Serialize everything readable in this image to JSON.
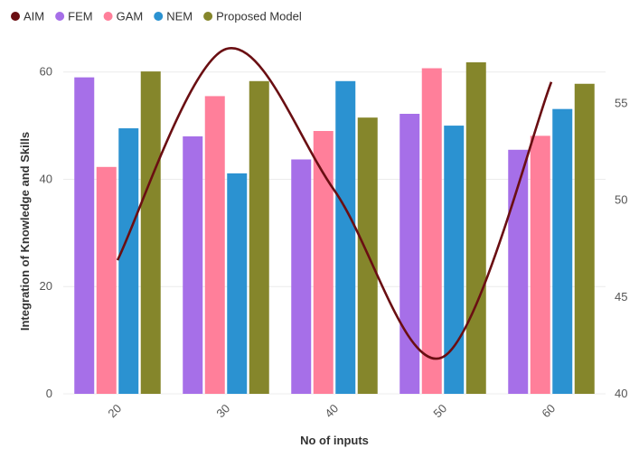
{
  "chart_data": {
    "type": "bar",
    "xlabel": "No of inputs",
    "ylabel": "Integration of Knowledge and Skills",
    "y2label": "",
    "categories": [
      "20",
      "30",
      "40",
      "50",
      "60"
    ],
    "ylim": [
      0,
      65
    ],
    "y2lim": [
      40,
      58
    ],
    "yticks": [
      "0",
      "20",
      "40",
      "60"
    ],
    "y2ticks": [
      "40",
      "45",
      "50",
      "55"
    ],
    "grid": "horizontal",
    "legend_position": "top-left",
    "series": [
      {
        "name": "FEM",
        "type": "bar",
        "axis": "left",
        "color": "#a66fe8",
        "values": [
          59,
          48,
          43.7,
          52.2,
          45.5
        ]
      },
      {
        "name": "GAM",
        "type": "bar",
        "axis": "left",
        "color": "#ff7f9a",
        "values": [
          42.3,
          55.5,
          49,
          60.7,
          48.1
        ]
      },
      {
        "name": "NEM",
        "type": "bar",
        "axis": "left",
        "color": "#2b92d1",
        "values": [
          49.5,
          41.1,
          58.3,
          50,
          53.1
        ]
      },
      {
        "name": "Proposed Model",
        "type": "bar",
        "axis": "left",
        "color": "#85862b",
        "values": [
          60.1,
          58.3,
          51.5,
          61.8,
          57.8
        ]
      }
    ],
    "line_series": {
      "name": "AIM",
      "type": "line",
      "axis": "right",
      "color": "#6a0e12",
      "x": [
        20,
        30,
        40,
        50,
        60
      ],
      "values": [
        46.9,
        57.8,
        50.5,
        41.9,
        56.1
      ]
    },
    "legend_order": [
      "AIM",
      "FEM",
      "GAM",
      "NEM",
      "Proposed Model"
    ]
  }
}
